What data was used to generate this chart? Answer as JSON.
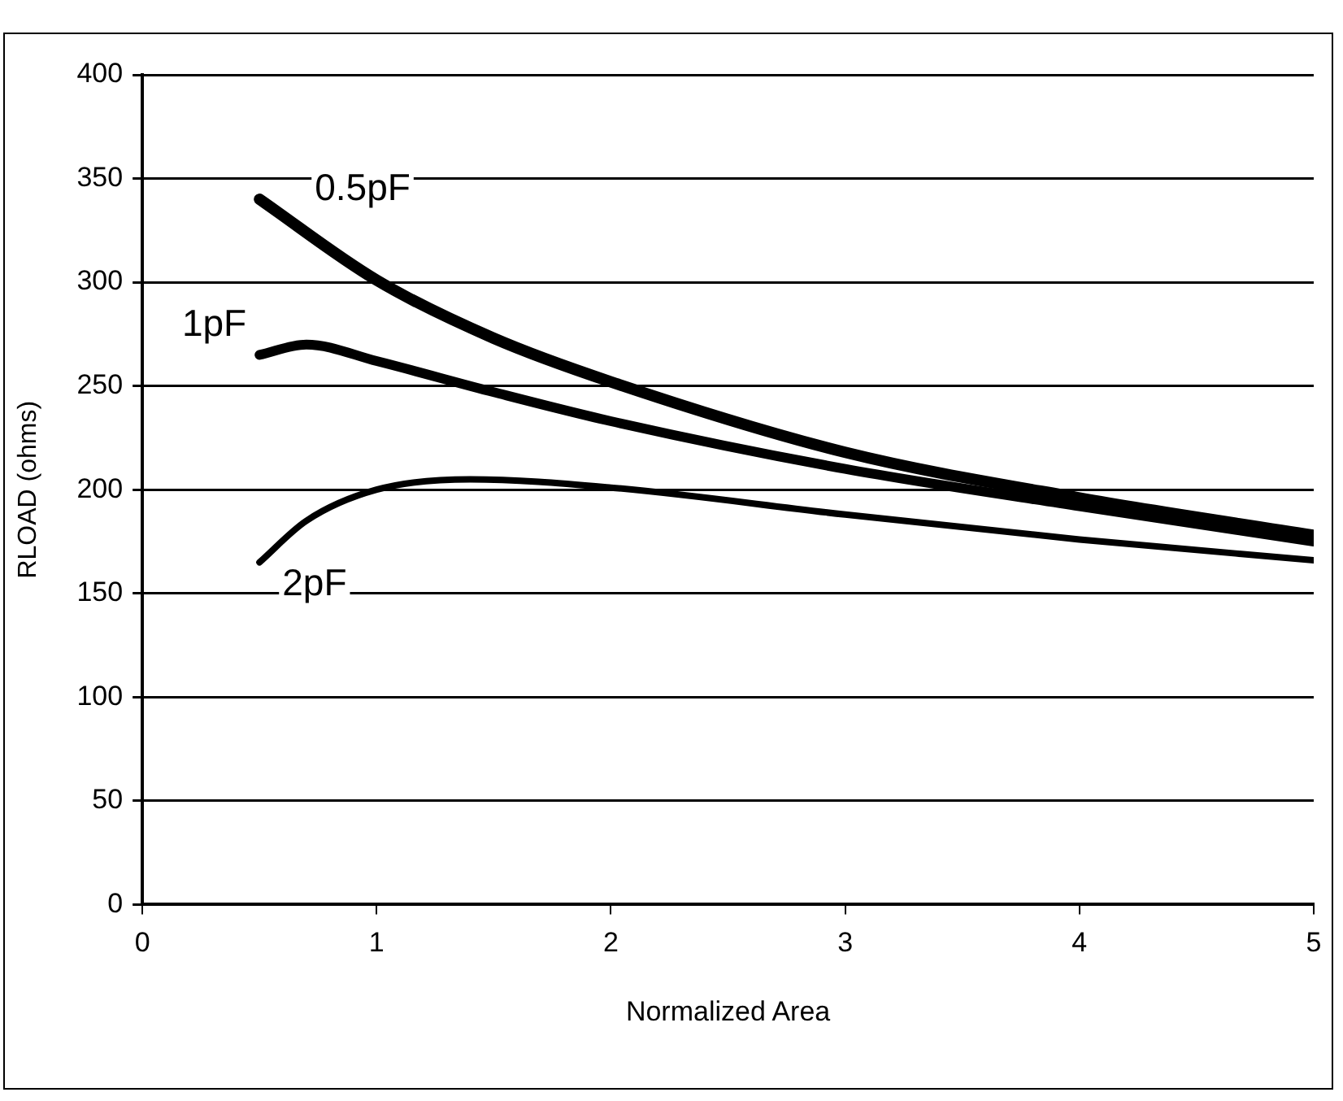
{
  "chart_data": {
    "type": "line",
    "xlabel": "Normalized Area",
    "ylabel": "RLOAD (ohms)",
    "xlim": [
      0,
      5
    ],
    "xticks": [
      0,
      1,
      2,
      3,
      4,
      5
    ],
    "ylim": [
      0,
      400
    ],
    "yticks": [
      0,
      50,
      100,
      150,
      200,
      250,
      300,
      350,
      400
    ],
    "grid": "y",
    "legend": false,
    "marker": "none",
    "line_style": "solid",
    "series": [
      {
        "name": "0.5pF",
        "color": "#000000",
        "x": [
          0.5,
          1,
          1.5,
          2,
          3,
          4,
          5
        ],
        "values": [
          340,
          301,
          273,
          252,
          218,
          196,
          178
        ]
      },
      {
        "name": "1pF",
        "color": "#000000",
        "x": [
          0.5,
          0.7,
          1,
          1.5,
          2,
          3,
          4,
          5
        ],
        "values": [
          265,
          270,
          262,
          247,
          233,
          210,
          192,
          175
        ]
      },
      {
        "name": "2pF",
        "color": "#000000",
        "x": [
          0.5,
          0.7,
          1,
          1.4,
          2,
          3,
          4,
          5
        ],
        "values": [
          165,
          185,
          200,
          205,
          201,
          188,
          176,
          166
        ]
      }
    ]
  }
}
